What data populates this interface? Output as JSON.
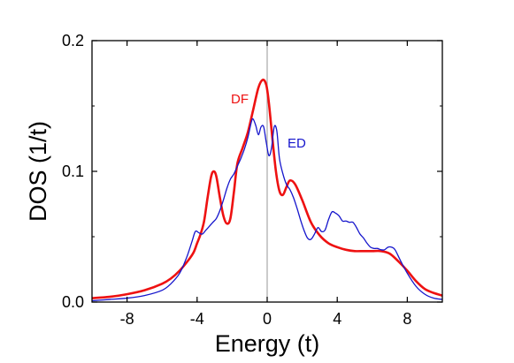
{
  "chart_data": {
    "type": "line",
    "title": "",
    "xlabel": "Energy (t)",
    "ylabel": "DOS (1/t)",
    "xlim": [
      -10,
      10
    ],
    "ylim": [
      0,
      0.2
    ],
    "x_ticks": [
      -8,
      -4,
      0,
      4,
      8
    ],
    "x_tick_labels": [
      "-8",
      "-4",
      "0",
      "4",
      "8"
    ],
    "y_ticks": [
      0.0,
      0.1,
      0.2
    ],
    "y_tick_labels": [
      "0.0",
      "0.1",
      "0.2"
    ],
    "vertical_reference_line": 0,
    "grid": false,
    "legend": "inline labels",
    "series": [
      {
        "name": "DF",
        "color": "#ee1111",
        "x": [
          -10,
          -9,
          -8,
          -7,
          -6,
          -5.5,
          -5,
          -4.5,
          -4.2,
          -4,
          -3.8,
          -3.6,
          -3.4,
          -3.2,
          -3.05,
          -2.9,
          -2.7,
          -2.5,
          -2.3,
          -2.1,
          -1.9,
          -1.7,
          -1.4,
          -1.1,
          -0.8,
          -0.5,
          -0.25,
          -0.05,
          0.1,
          0.3,
          0.5,
          0.7,
          0.9,
          1.1,
          1.3,
          1.6,
          2.0,
          2.5,
          3.0,
          3.5,
          4.0,
          4.5,
          5.0,
          5.5,
          6.0,
          6.5,
          7.0,
          7.5,
          8.0,
          8.5,
          9.0,
          9.5,
          10.0
        ],
        "y": [
          0.003,
          0.004,
          0.006,
          0.009,
          0.014,
          0.018,
          0.024,
          0.032,
          0.038,
          0.045,
          0.052,
          0.062,
          0.08,
          0.096,
          0.1,
          0.096,
          0.08,
          0.066,
          0.06,
          0.064,
          0.084,
          0.106,
          0.118,
          0.13,
          0.147,
          0.164,
          0.17,
          0.166,
          0.152,
          0.125,
          0.1,
          0.085,
          0.082,
          0.088,
          0.093,
          0.09,
          0.078,
          0.061,
          0.051,
          0.045,
          0.042,
          0.04,
          0.039,
          0.039,
          0.039,
          0.039,
          0.037,
          0.031,
          0.024,
          0.016,
          0.01,
          0.007,
          0.005
        ]
      },
      {
        "name": "ED",
        "color": "#1515cc",
        "x": [
          -10,
          -9,
          -8,
          -7,
          -6,
          -5.5,
          -5,
          -4.6,
          -4.3,
          -4.1,
          -3.9,
          -3.7,
          -3.5,
          -3.3,
          -3.1,
          -2.9,
          -2.7,
          -2.5,
          -2.3,
          -2.1,
          -1.9,
          -1.7,
          -1.5,
          -1.3,
          -1.1,
          -0.9,
          -0.8,
          -0.65,
          -0.5,
          -0.35,
          -0.2,
          -0.05,
          0.1,
          0.25,
          0.4,
          0.55,
          0.7,
          0.9,
          1.1,
          1.3,
          1.5,
          1.7,
          1.9,
          2.1,
          2.3,
          2.5,
          2.7,
          2.9,
          3.1,
          3.3,
          3.5,
          3.7,
          3.9,
          4.1,
          4.3,
          4.5,
          4.7,
          4.9,
          5.1,
          5.3,
          5.5,
          5.7,
          5.9,
          6.1,
          6.3,
          6.5,
          6.7,
          6.9,
          7.1,
          7.3,
          7.6,
          8.0,
          8.5,
          9.0,
          9.5,
          10.0
        ],
        "y": [
          0.001,
          0.002,
          0.003,
          0.005,
          0.009,
          0.014,
          0.022,
          0.034,
          0.046,
          0.054,
          0.053,
          0.052,
          0.055,
          0.058,
          0.061,
          0.064,
          0.07,
          0.078,
          0.087,
          0.094,
          0.098,
          0.104,
          0.11,
          0.117,
          0.126,
          0.138,
          0.14,
          0.135,
          0.128,
          0.134,
          0.134,
          0.122,
          0.112,
          0.118,
          0.134,
          0.131,
          0.11,
          0.098,
          0.09,
          0.086,
          0.08,
          0.072,
          0.063,
          0.055,
          0.049,
          0.048,
          0.052,
          0.057,
          0.054,
          0.055,
          0.063,
          0.069,
          0.068,
          0.066,
          0.062,
          0.062,
          0.061,
          0.061,
          0.057,
          0.052,
          0.049,
          0.045,
          0.042,
          0.041,
          0.041,
          0.04,
          0.04,
          0.042,
          0.042,
          0.04,
          0.032,
          0.022,
          0.012,
          0.006,
          0.003,
          0.002
        ]
      }
    ]
  }
}
